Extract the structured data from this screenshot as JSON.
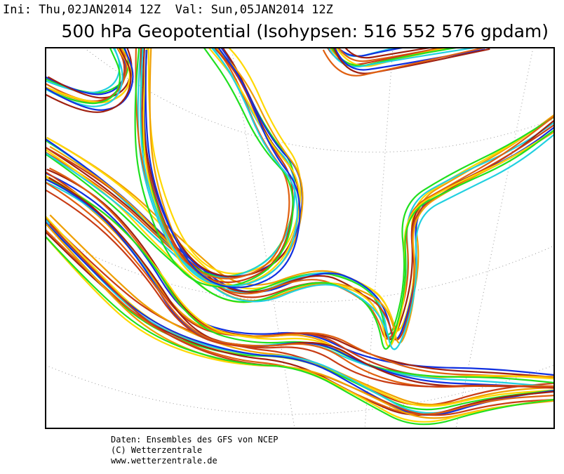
{
  "header": {
    "init": "Ini: Thu,02JAN2014 12Z  Val: Sun,05JAN2014 12Z",
    "title": "500 hPa Geopotential (Isohypsen: 516 552 576 gpdam)"
  },
  "footer": {
    "lines": [
      "Daten: Ensembles des GFS von NCEP",
      "(C) Wetterzentrale",
      "www.wetterzentrale.de"
    ]
  }
}
